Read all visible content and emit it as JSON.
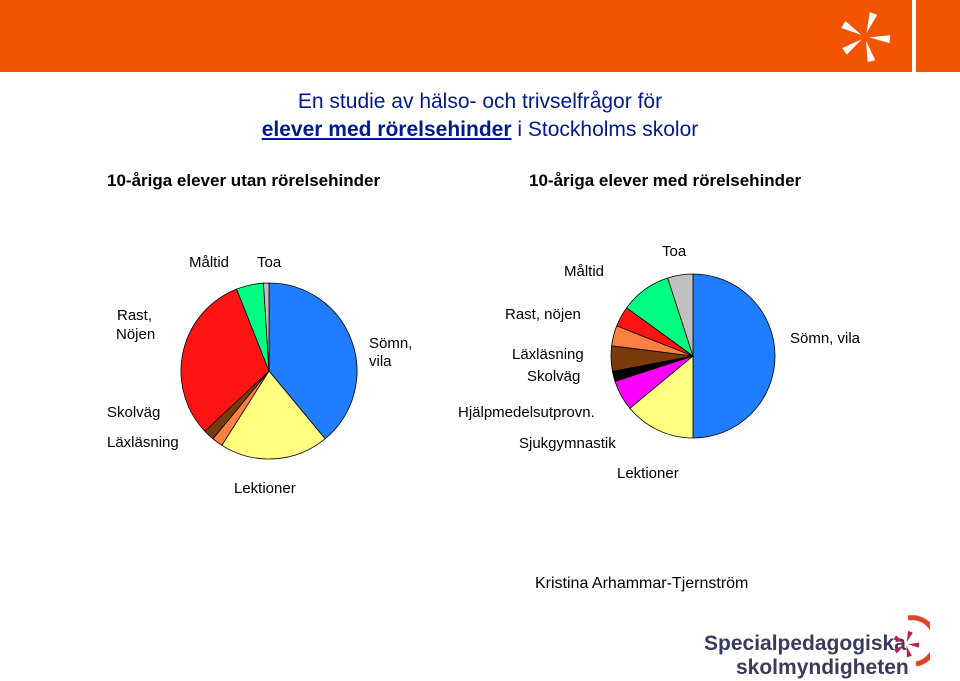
{
  "header": {
    "title_line1": "En studie av hälso- och trivselfrågor för",
    "title_line2_bold": "elever med rörelsehinder",
    "title_line2_rest": " i Stockholms skolor"
  },
  "colors": {
    "brand_orange": "#f25400",
    "title_blue": "#001a8c"
  },
  "chart_data": [
    {
      "type": "pie",
      "title": "10-åriga elever utan rörelsehinder",
      "slices": [
        {
          "label": "Sömn, vila",
          "value": 39,
          "color": "#1e7eff"
        },
        {
          "label": "Lektioner",
          "value": 20,
          "color": "#ffff80"
        },
        {
          "label": "Läxläsning",
          "value": 2,
          "color": "#ff8040"
        },
        {
          "label": "Skolväg",
          "value": 2,
          "color": "#7a3b0c"
        },
        {
          "label": "Rast, Nöjen",
          "value": 31,
          "color": "#ff1414"
        },
        {
          "label": "Måltid",
          "value": 5,
          "color": "#00ff80"
        },
        {
          "label": "Toa",
          "value": 1,
          "color": "#c0c0c0"
        }
      ]
    },
    {
      "type": "pie",
      "title": "10-åriga elever med rörelsehinder",
      "slices": [
        {
          "label": "Sömn, vila",
          "value": 50,
          "color": "#1e7eff"
        },
        {
          "label": "Lektioner",
          "value": 14,
          "color": "#ffff80"
        },
        {
          "label": "Sjukgymnastik",
          "value": 6,
          "color": "#ff00ff"
        },
        {
          "label": "Hjälpmedelsutprovn.",
          "value": 2,
          "color": "#000000"
        },
        {
          "label": "Skolväg",
          "value": 5,
          "color": "#7a3b0c"
        },
        {
          "label": "Läxläsning",
          "value": 4,
          "color": "#ff8040"
        },
        {
          "label": "Rast, nöjen",
          "value": 4,
          "color": "#ff1414"
        },
        {
          "label": "Måltid",
          "value": 10,
          "color": "#00ff80"
        },
        {
          "label": "Toa",
          "value": 5,
          "color": "#c0c0c0"
        }
      ]
    }
  ],
  "labels_left": {
    "maltid": "Måltid",
    "toa": "Toa",
    "rast1": "Rast,",
    "rast2": "Nöjen",
    "somn1": "Sömn,",
    "somn2": "vila",
    "skolvag": "Skolväg",
    "laxlasning": "Läxläsning",
    "lektioner": "Lektioner"
  },
  "labels_right": {
    "toa": "Toa",
    "maltid": "Måltid",
    "rast": "Rast, nöjen",
    "laxlasning": "Läxläsning",
    "skolvag": "Skolväg",
    "somn": "Sömn, vila",
    "hjalp": "Hjälpmedelsutprovn.",
    "sjukgym": "Sjukgymnastik",
    "lektioner": "Lektioner"
  },
  "author": "Kristina Arhammar-Tjernström",
  "logo": {
    "line1": "Specialpedagogiska",
    "line2": "skolmyndigheten"
  }
}
